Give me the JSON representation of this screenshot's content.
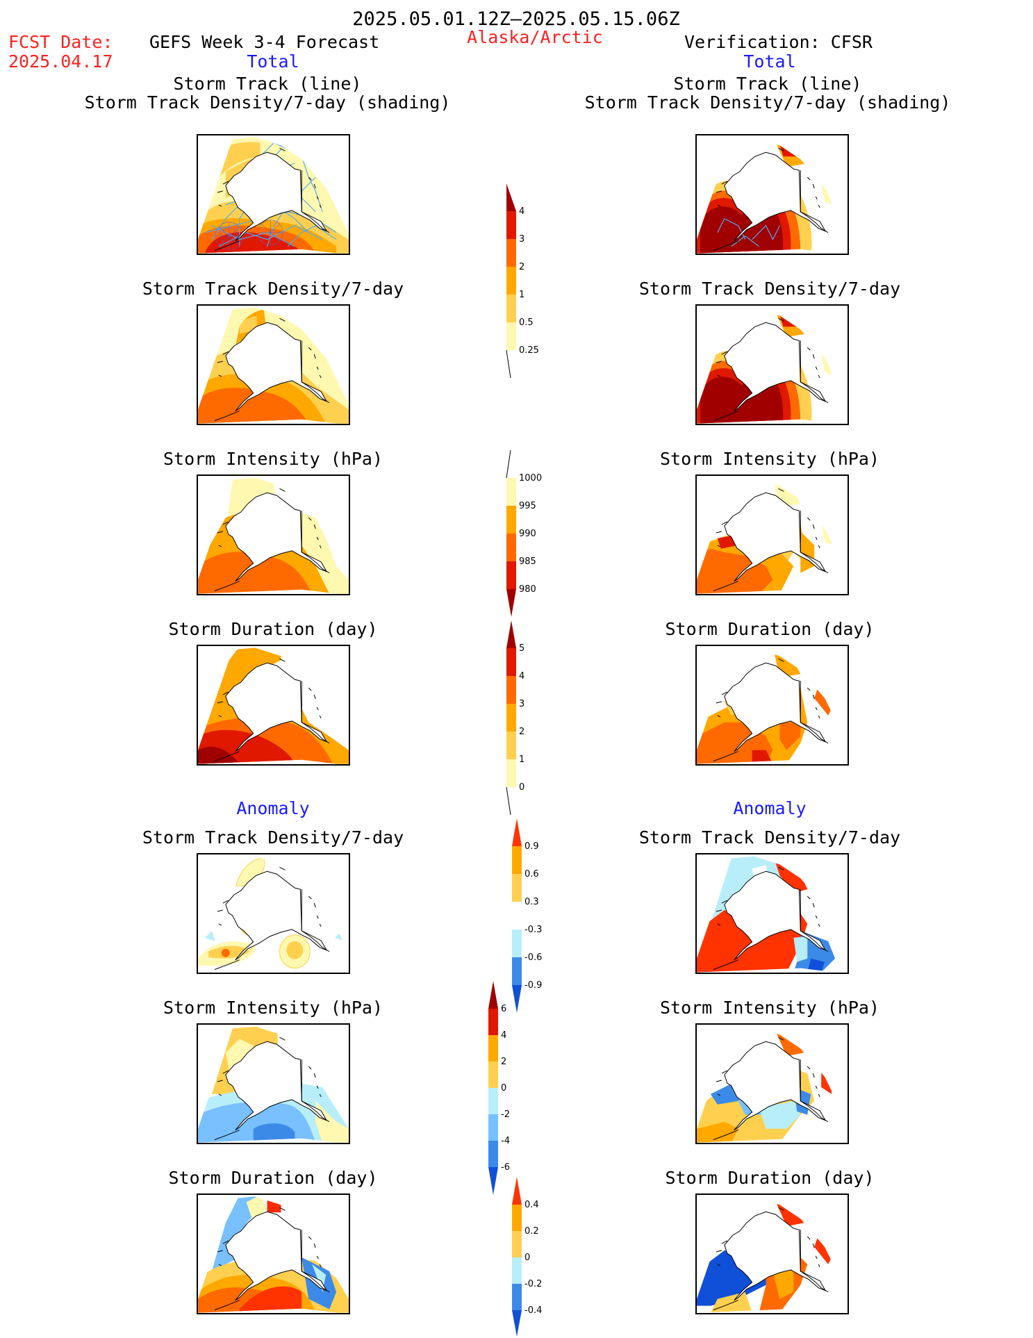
{
  "header": {
    "period": "2025.05.01.12Z–2025.05.15.06Z",
    "fcst_label": "FCST Date:",
    "fcst_date": "2025.04.17",
    "model_title": "GEFS Week 3-4 Forecast",
    "region": "Alaska/Arctic",
    "verification": "Verification: CFSR"
  },
  "sections": {
    "total": "Total",
    "anomaly": "Anomaly"
  },
  "titles": {
    "track_line": "Storm Track (line)",
    "track_shading": "Storm Track Density/7-day (shading)",
    "density": "Storm Track Density/7-day",
    "intensity": "Storm Intensity (hPa)",
    "duration": "Storm Duration (day)"
  },
  "colorbars": {
    "density": [
      "0.25",
      "0.5",
      "1",
      "2",
      "3",
      "4"
    ],
    "intensity": [
      "1000",
      "995",
      "990",
      "985",
      "980"
    ],
    "duration": [
      "0",
      "1",
      "2",
      "3",
      "4",
      "5"
    ],
    "density_anom": [
      "-0.9",
      "-0.6",
      "-0.3",
      "0.3",
      "0.6",
      "0.9"
    ],
    "intensity_anom": [
      "-6",
      "-4",
      "-2",
      "0",
      "2",
      "4",
      "6"
    ],
    "duration_anom": [
      "-0.4",
      "-0.2",
      "0",
      "0.2",
      "0.4"
    ]
  },
  "colors": {
    "yellow_light": "#fff8b0",
    "yellow": "#ffd050",
    "orange_light": "#ffa800",
    "orange": "#ff6a00",
    "red": "#e01800",
    "dark_red": "#a00000",
    "blue_light": "#b8eefa",
    "blue_mid": "#78c0ff",
    "blue": "#3c8ae8",
    "blue_dark": "#1050d8",
    "track": "#55aaee"
  }
}
